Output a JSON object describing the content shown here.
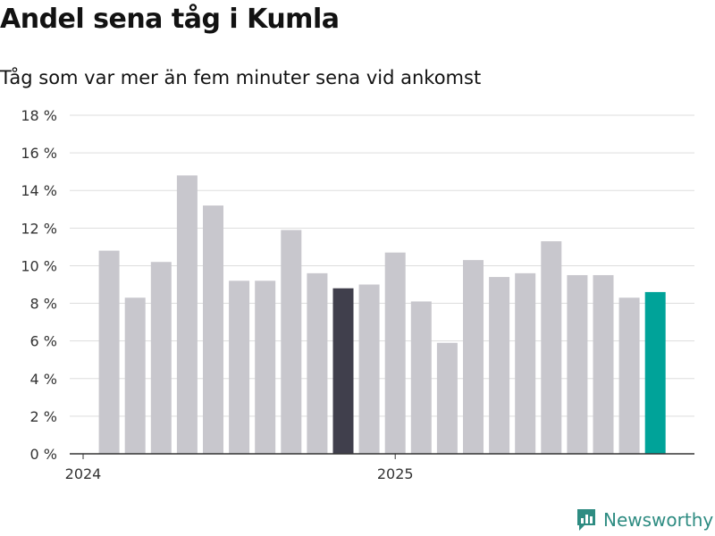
{
  "title": "Andel sena tåg i Kumla",
  "subtitle": "Tåg som var mer än fem minuter sena vid ankomst",
  "brand": "Newsworthy",
  "colors": {
    "bar_default": "#c8c7cd",
    "bar_highlight_dark": "#403f4c",
    "bar_highlight_current": "#00a399",
    "grid": "#dddddd",
    "axis": "#333333",
    "brand": "#2e8c82"
  },
  "chart_data": {
    "type": "bar",
    "title": "Andel sena tåg i Kumla",
    "subtitle": "Tåg som var mer än fem minuter sena vid ankomst",
    "xlabel": "",
    "ylabel": "",
    "unit": "%",
    "ylim": [
      0,
      18
    ],
    "yticks": [
      0,
      2,
      4,
      6,
      8,
      10,
      12,
      14,
      16,
      18
    ],
    "ytick_labels": [
      "0 %",
      "2 %",
      "4 %",
      "6 %",
      "8 %",
      "10 %",
      "12 %",
      "14 %",
      "16 %",
      "18 %"
    ],
    "grid": true,
    "x_tick_labels": [
      {
        "label": "2024",
        "date": "2024-01"
      },
      {
        "label": "2025",
        "date": "2025-01"
      }
    ],
    "categories": [
      "2024-02",
      "2024-03",
      "2024-04",
      "2024-05",
      "2024-06",
      "2024-07",
      "2024-08",
      "2024-09",
      "2024-10",
      "2024-11",
      "2024-12",
      "2025-01",
      "2025-02",
      "2025-03",
      "2025-04",
      "2025-05",
      "2025-06",
      "2025-07",
      "2025-08",
      "2025-09",
      "2025-10",
      "2025-11"
    ],
    "values": [
      10.8,
      8.3,
      10.2,
      14.8,
      13.2,
      9.2,
      9.2,
      11.9,
      9.6,
      8.8,
      9.0,
      10.7,
      8.1,
      5.9,
      10.3,
      9.4,
      9.6,
      11.3,
      9.5,
      9.5,
      8.3,
      8.6
    ],
    "highlights": {
      "2024-11": "dark",
      "2025-11": "current"
    }
  }
}
